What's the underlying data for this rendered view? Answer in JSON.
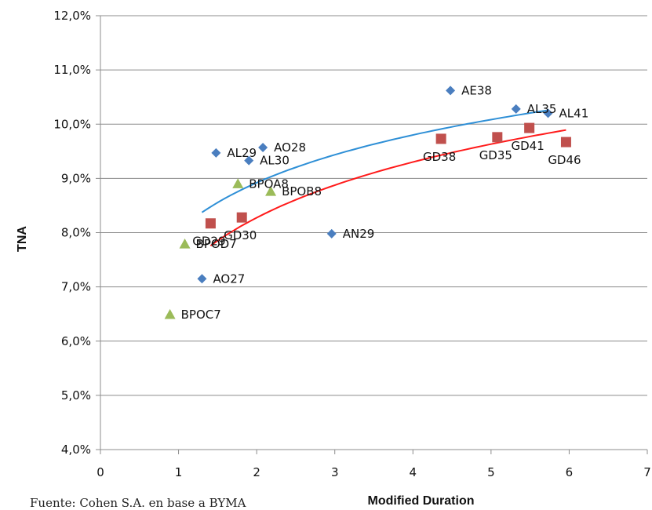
{
  "chart_data": {
    "type": "scatter",
    "title": "",
    "xlabel": "Modified Duration",
    "ylabel": "TNA",
    "xlim": [
      0,
      7
    ],
    "ylim": [
      4.0,
      12.0
    ],
    "x_ticks": [
      "0",
      "1",
      "2",
      "3",
      "4",
      "5",
      "6",
      "7"
    ],
    "y_ticks": [
      "4,0%",
      "5,0%",
      "6,0%",
      "7,0%",
      "8,0%",
      "9,0%",
      "10,0%",
      "11,0%",
      "12,0%"
    ],
    "legend": "none",
    "gridlines": "horizontal",
    "series": [
      {
        "color": "#4a7ebf",
        "marker": "diamond",
        "points": [
          {
            "label": "AO27",
            "x": 1.3,
            "y": 7.15
          },
          {
            "label": "AL29",
            "x": 1.48,
            "y": 9.47
          },
          {
            "label": "AL30",
            "x": 1.9,
            "y": 9.33
          },
          {
            "label": "AO28",
            "x": 2.08,
            "y": 9.57
          },
          {
            "label": "AN29",
            "x": 2.96,
            "y": 7.98
          },
          {
            "label": "AE38",
            "x": 4.48,
            "y": 10.62
          },
          {
            "label": "AL35",
            "x": 5.32,
            "y": 10.28
          },
          {
            "label": "AL41",
            "x": 5.73,
            "y": 10.2
          }
        ]
      },
      {
        "color": "#c0504d",
        "marker": "square",
        "points": [
          {
            "label": "GD29",
            "x": 1.41,
            "y": 8.17
          },
          {
            "label": "GD30",
            "x": 1.81,
            "y": 8.28
          },
          {
            "label": "GD38",
            "x": 4.36,
            "y": 9.73
          },
          {
            "label": "GD35",
            "x": 5.08,
            "y": 9.76
          },
          {
            "label": "GD41",
            "x": 5.49,
            "y": 9.93
          },
          {
            "label": "GD46",
            "x": 5.96,
            "y": 9.67
          }
        ]
      },
      {
        "color": "#9bbb59",
        "marker": "triangle",
        "points": [
          {
            "label": "BPOC7",
            "x": 0.89,
            "y": 6.49
          },
          {
            "label": "BPOD7",
            "x": 1.08,
            "y": 7.79
          },
          {
            "label": "BPOA8",
            "x": 1.76,
            "y": 8.9
          },
          {
            "label": "BPOB8",
            "x": 2.18,
            "y": 8.76
          }
        ]
      }
    ],
    "trendlines": [
      {
        "type": "logarithmic",
        "color": "#2e8fd6",
        "x_range": [
          1.3,
          5.73
        ],
        "a": 8.04,
        "b": 1.27
      },
      {
        "type": "logarithmic",
        "color": "#ff1a1a",
        "x_range": [
          1.41,
          5.96
        ],
        "a": 7.25,
        "b": 1.48
      }
    ]
  },
  "footer_text": "Fuente: Cohen S.A. en base a BYMA"
}
